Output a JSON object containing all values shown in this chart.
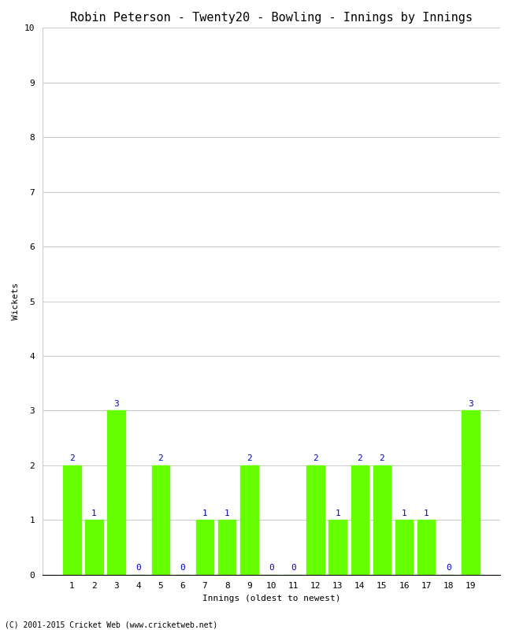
{
  "title": "Robin Peterson - Twenty20 - Bowling - Innings by Innings",
  "xlabel": "Innings (oldest to newest)",
  "ylabel": "Wickets",
  "categories": [
    "1",
    "2",
    "3",
    "4",
    "5",
    "6",
    "7",
    "8",
    "9",
    "10",
    "11",
    "12",
    "13",
    "14",
    "15",
    "16",
    "17",
    "18",
    "19"
  ],
  "values": [
    2,
    1,
    3,
    0,
    2,
    0,
    1,
    1,
    2,
    0,
    0,
    2,
    1,
    2,
    2,
    1,
    1,
    0,
    3
  ],
  "bar_color": "#66ff00",
  "bar_edge_color": "#66ff00",
  "ylim": [
    0,
    10
  ],
  "yticks": [
    0,
    1,
    2,
    3,
    4,
    5,
    6,
    7,
    8,
    9,
    10
  ],
  "background_color": "#ffffff",
  "plot_bg_color": "#ffffff",
  "title_fontsize": 11,
  "label_fontsize": 8,
  "tick_fontsize": 8,
  "annotation_color": "#0000cc",
  "annotation_fontsize": 8,
  "footer": "(C) 2001-2015 Cricket Web (www.cricketweb.net)"
}
